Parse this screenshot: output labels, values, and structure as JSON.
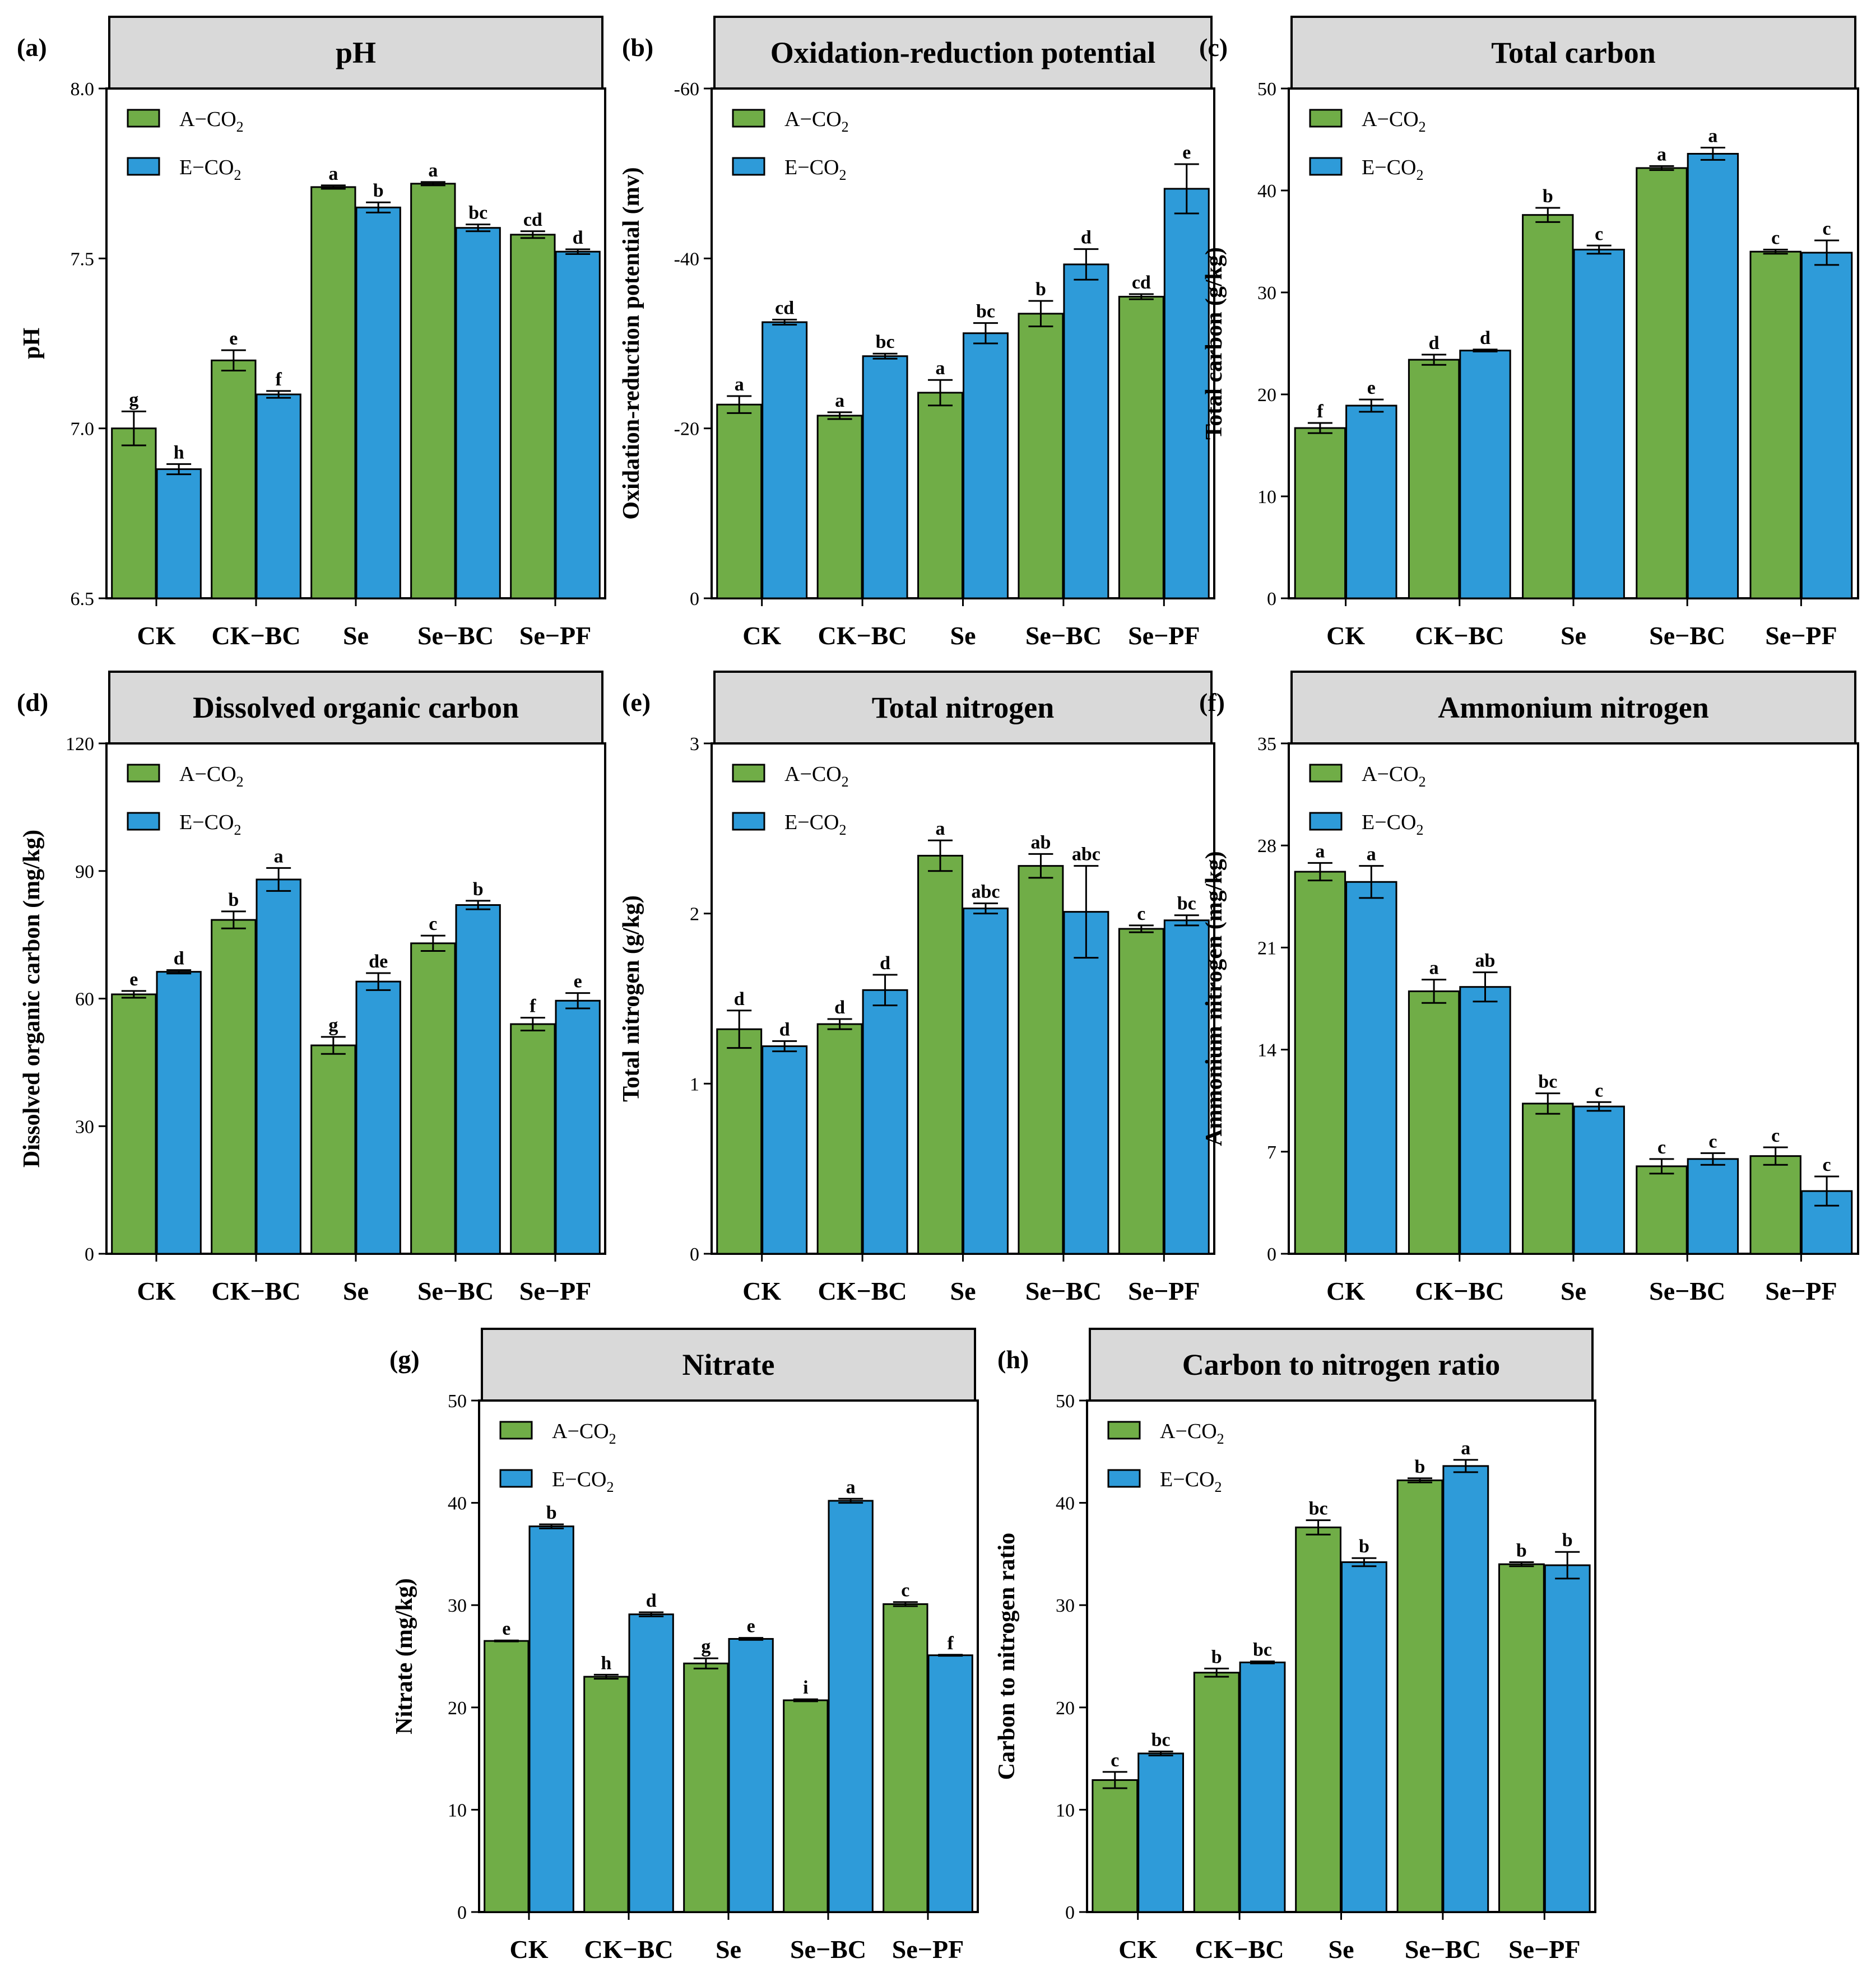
{
  "legend": {
    "a_prefix": "A−CO",
    "e_prefix": "E−CO",
    "subscript": "2"
  },
  "colors": {
    "a_co2": "#70ad47",
    "e_co2": "#2e9bd9",
    "title_bg": "#d9d9d9",
    "axis": "#000000"
  },
  "chart_data": [
    {
      "type": "bar",
      "tag": "(a)",
      "title": "pH",
      "ylabel": "pH",
      "categories": [
        "CK",
        "CK−BC",
        "Se",
        "Se−BC",
        "Se−PF"
      ],
      "ylim": [
        6.5,
        8.0
      ],
      "yticks": [
        "6.5",
        "7.0",
        "7.5",
        "8.0"
      ],
      "series": [
        {
          "name": "A−CO2",
          "values": [
            7.0,
            7.2,
            7.71,
            7.72,
            7.57
          ],
          "errors": [
            0.05,
            0.03,
            0.005,
            0.005,
            0.01
          ],
          "letters": [
            "g",
            "e",
            "a",
            "a",
            "cd"
          ]
        },
        {
          "name": "E−CO2",
          "values": [
            6.88,
            7.1,
            7.65,
            7.59,
            7.52
          ],
          "errors": [
            0.015,
            0.01,
            0.015,
            0.01,
            0.007
          ],
          "letters": [
            "h",
            "f",
            "b",
            "bc",
            "d"
          ]
        }
      ]
    },
    {
      "type": "bar",
      "tag": "(b)",
      "title": "Oxidation-reduction potential",
      "ylabel": "Oxidation-reduction potential (mv)",
      "categories": [
        "CK",
        "CK−BC",
        "Se",
        "Se−BC",
        "Se−PF"
      ],
      "ylim": [
        0,
        -60
      ],
      "yticks": [
        "0",
        "-20",
        "-40",
        "-60"
      ],
      "series": [
        {
          "name": "A−CO2",
          "values": [
            -22.8,
            -21.5,
            -24.2,
            -33.5,
            -35.5
          ],
          "errors": [
            1.0,
            0.4,
            1.5,
            1.5,
            0.3
          ],
          "letters": [
            "a",
            "a",
            "a",
            "b",
            "cd"
          ]
        },
        {
          "name": "E−CO2",
          "values": [
            -32.5,
            -28.5,
            -31.2,
            -39.3,
            -48.2
          ],
          "errors": [
            0.3,
            0.3,
            1.2,
            1.8,
            2.9
          ],
          "letters": [
            "cd",
            "bc",
            "bc",
            "d",
            "e"
          ]
        }
      ]
    },
    {
      "type": "bar",
      "tag": "(c)",
      "title": "Total carbon",
      "ylabel": "Total carbon (g/kg)",
      "categories": [
        "CK",
        "CK−BC",
        "Se",
        "Se−BC",
        "Se−PF"
      ],
      "ylim": [
        0,
        50
      ],
      "yticks": [
        "0",
        "10",
        "20",
        "30",
        "40",
        "50"
      ],
      "series": [
        {
          "name": "A−CO2",
          "values": [
            16.7,
            23.4,
            37.6,
            42.2,
            34.0
          ],
          "errors": [
            0.5,
            0.5,
            0.7,
            0.2,
            0.2
          ],
          "letters": [
            "f",
            "d",
            "b",
            "a",
            "c"
          ]
        },
        {
          "name": "E−CO2",
          "values": [
            18.9,
            24.3,
            34.2,
            43.6,
            33.9
          ],
          "errors": [
            0.6,
            0.1,
            0.4,
            0.6,
            1.2
          ],
          "letters": [
            "e",
            "d",
            "c",
            "a",
            "c"
          ]
        }
      ]
    },
    {
      "type": "bar",
      "tag": "(d)",
      "title": "Dissolved organic carbon",
      "ylabel": "Dissolved organic carbon (mg/kg)",
      "categories": [
        "CK",
        "CK−BC",
        "Se",
        "Se−BC",
        "Se−PF"
      ],
      "ylim": [
        0,
        120
      ],
      "yticks": [
        "0",
        "30",
        "60",
        "90",
        "120"
      ],
      "series": [
        {
          "name": "A−CO2",
          "values": [
            61.0,
            78.5,
            49.0,
            73.0,
            54.0
          ],
          "errors": [
            0.8,
            2.0,
            2.0,
            1.8,
            1.5
          ],
          "letters": [
            "e",
            "b",
            "g",
            "c",
            "f"
          ]
        },
        {
          "name": "E−CO2",
          "values": [
            66.3,
            88.0,
            64.0,
            82.0,
            59.5
          ],
          "errors": [
            0.4,
            2.7,
            2.0,
            1.0,
            1.8
          ],
          "letters": [
            "d",
            "a",
            "de",
            "b",
            "e"
          ]
        }
      ]
    },
    {
      "type": "bar",
      "tag": "(e)",
      "title": "Total nitrogen",
      "ylabel": "Total nitrogen (g/kg)",
      "categories": [
        "CK",
        "CK−BC",
        "Se",
        "Se−BC",
        "Se−PF"
      ],
      "ylim": [
        0,
        3
      ],
      "yticks": [
        "0",
        "1",
        "2",
        "3"
      ],
      "series": [
        {
          "name": "A−CO2",
          "values": [
            1.32,
            1.35,
            2.34,
            2.28,
            1.91
          ],
          "errors": [
            0.11,
            0.03,
            0.09,
            0.07,
            0.02
          ],
          "letters": [
            "d",
            "d",
            "a",
            "ab",
            "c"
          ]
        },
        {
          "name": "E−CO2",
          "values": [
            1.22,
            1.55,
            2.03,
            2.01,
            1.96
          ],
          "errors": [
            0.03,
            0.09,
            0.03,
            0.27,
            0.03
          ],
          "letters": [
            "d",
            "d",
            "abc",
            "abc",
            "bc"
          ]
        }
      ]
    },
    {
      "type": "bar",
      "tag": "(f)",
      "title": "Ammonium nitrogen",
      "ylabel": "Ammonium nitrogen (mg/kg)",
      "categories": [
        "CK",
        "CK−BC",
        "Se",
        "Se−BC",
        "Se−PF"
      ],
      "ylim": [
        0,
        35
      ],
      "yticks": [
        "0",
        "7",
        "14",
        "21",
        "28",
        "35"
      ],
      "series": [
        {
          "name": "A−CO2",
          "values": [
            26.2,
            18.0,
            10.3,
            6.0,
            6.7
          ],
          "errors": [
            0.6,
            0.8,
            0.7,
            0.5,
            0.6
          ],
          "letters": [
            "a",
            "a",
            "bc",
            "c",
            "c"
          ]
        },
        {
          "name": "E−CO2",
          "values": [
            25.5,
            18.3,
            10.1,
            6.5,
            4.3
          ],
          "errors": [
            1.1,
            1.0,
            0.3,
            0.4,
            1.0
          ],
          "letters": [
            "a",
            "ab",
            "c",
            "c",
            "c"
          ]
        }
      ]
    },
    {
      "type": "bar",
      "tag": "(g)",
      "title": "Nitrate",
      "ylabel": "Nitrate (mg/kg)",
      "categories": [
        "CK",
        "CK−BC",
        "Se",
        "Se−BC",
        "Se−PF"
      ],
      "ylim": [
        0,
        50
      ],
      "yticks": [
        "0",
        "10",
        "20",
        "30",
        "40",
        "50"
      ],
      "series": [
        {
          "name": "A−CO2",
          "values": [
            26.5,
            23.0,
            24.3,
            20.7,
            30.1
          ],
          "errors": [
            0.05,
            0.2,
            0.5,
            0.1,
            0.2
          ],
          "letters": [
            "e",
            "h",
            "g",
            "i",
            "c"
          ]
        },
        {
          "name": "E−CO2",
          "values": [
            37.7,
            29.1,
            26.7,
            40.2,
            25.1
          ],
          "errors": [
            0.2,
            0.2,
            0.1,
            0.2,
            0.05
          ],
          "letters": [
            "b",
            "d",
            "e",
            "a",
            "f"
          ]
        }
      ]
    },
    {
      "type": "bar",
      "tag": "(h)",
      "title": "Carbon to nitrogen ratio",
      "ylabel": "Carbon to nitrogen ratio",
      "categories": [
        "CK",
        "CK−BC",
        "Se",
        "Se−BC",
        "Se−PF"
      ],
      "ylim": [
        0,
        50
      ],
      "yticks": [
        "0",
        "10",
        "20",
        "30",
        "40",
        "50"
      ],
      "series": [
        {
          "name": "A−CO2",
          "values": [
            12.9,
            23.4,
            37.6,
            42.2,
            34.0
          ],
          "errors": [
            0.8,
            0.4,
            0.7,
            0.2,
            0.2
          ],
          "letters": [
            "c",
            "b",
            "bc",
            "b",
            "b"
          ]
        },
        {
          "name": "E−CO2",
          "values": [
            15.5,
            24.4,
            34.2,
            43.6,
            33.9
          ],
          "errors": [
            0.2,
            0.1,
            0.4,
            0.6,
            1.3
          ],
          "letters": [
            "bc",
            "bc",
            "b",
            "a",
            "b"
          ]
        }
      ]
    }
  ]
}
